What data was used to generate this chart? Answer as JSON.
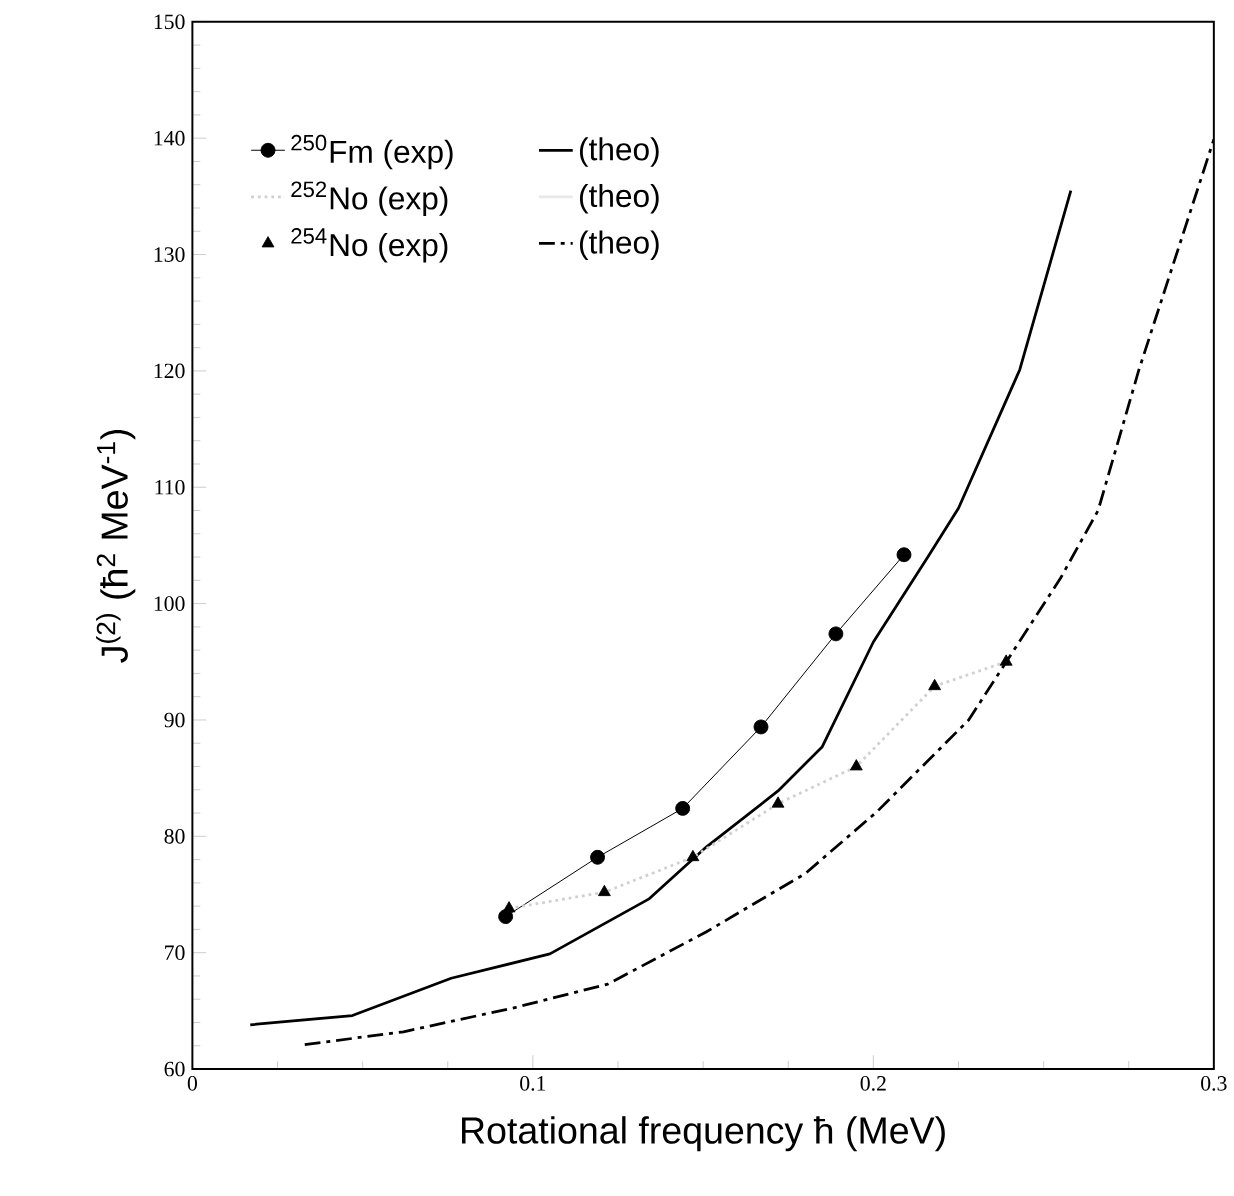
{
  "chart_data": {
    "type": "line",
    "xlabel": "Rotational frequency ħ    (MeV)",
    "ylabel": "J$^{(2)}$ (ħ$^{2}$ MeV$^{-1}$)",
    "xlim": [
      0,
      0.3
    ],
    "ylim": [
      60,
      150
    ],
    "xticks": [
      0,
      0.1,
      0.2,
      0.3
    ],
    "yticks": [
      60,
      70,
      80,
      90,
      100,
      110,
      120,
      130,
      140,
      150
    ],
    "legend": "top left",
    "grid": false,
    "series": [
      {
        "name": "$^{250}$Fm (exp)",
        "color": "#000000",
        "marker": "circle",
        "line_style": "solid",
        "x": [
          0.092,
          0.119,
          0.144,
          0.167,
          0.189,
          0.209
        ],
        "values": [
          73.1,
          78.2,
          82.4,
          89.4,
          97.4,
          104.2
        ]
      },
      {
        "name": "(theo)",
        "color": "#000000",
        "marker": "none",
        "line_style": "solid",
        "x": [
          0.017,
          0.047,
          0.076,
          0.105,
          0.134,
          0.151,
          0.172,
          0.185,
          0.2,
          0.216,
          0.225,
          0.243,
          0.258
        ],
        "values": [
          63.8,
          64.6,
          67.8,
          69.9,
          74.6,
          79.1,
          83.9,
          87.7,
          96.7,
          104.0,
          108.2,
          120.1,
          135.5
        ]
      },
      {
        "name": "$^{252}$No (exp)",
        "color": "#d0d0d0",
        "marker": "none",
        "line_style": "dotted",
        "x": [
          0.093,
          0.121,
          0.147,
          0.172,
          0.195,
          0.218,
          0.239
        ],
        "values": [
          73.8,
          75.2,
          78.2,
          82.8,
          86.0,
          92.9,
          95.0
        ]
      },
      {
        "name": "(theo)",
        "color": "#e8e8e8",
        "marker": "none",
        "line_style": "solid"
      },
      {
        "name": "$^{254}$No (exp)",
        "type": "scatter",
        "color": "#000000",
        "marker": "triangle",
        "x": [
          0.093,
          0.121,
          0.147,
          0.172,
          0.195,
          0.218,
          0.239
        ],
        "values": [
          73.8,
          75.2,
          78.2,
          82.8,
          86.0,
          92.9,
          95.0
        ]
      },
      {
        "name": "(theo)",
        "color": "#000000",
        "marker": "none",
        "line_style": "dashdot",
        "x": [
          0.033,
          0.062,
          0.095,
          0.122,
          0.151,
          0.18,
          0.201,
          0.228,
          0.255,
          0.266,
          0.278,
          0.3
        ],
        "values": [
          62.1,
          63.2,
          65.3,
          67.3,
          71.8,
          76.8,
          82.1,
          90.0,
          102.2,
          108.0,
          120.1,
          139.9
        ]
      }
    ]
  }
}
